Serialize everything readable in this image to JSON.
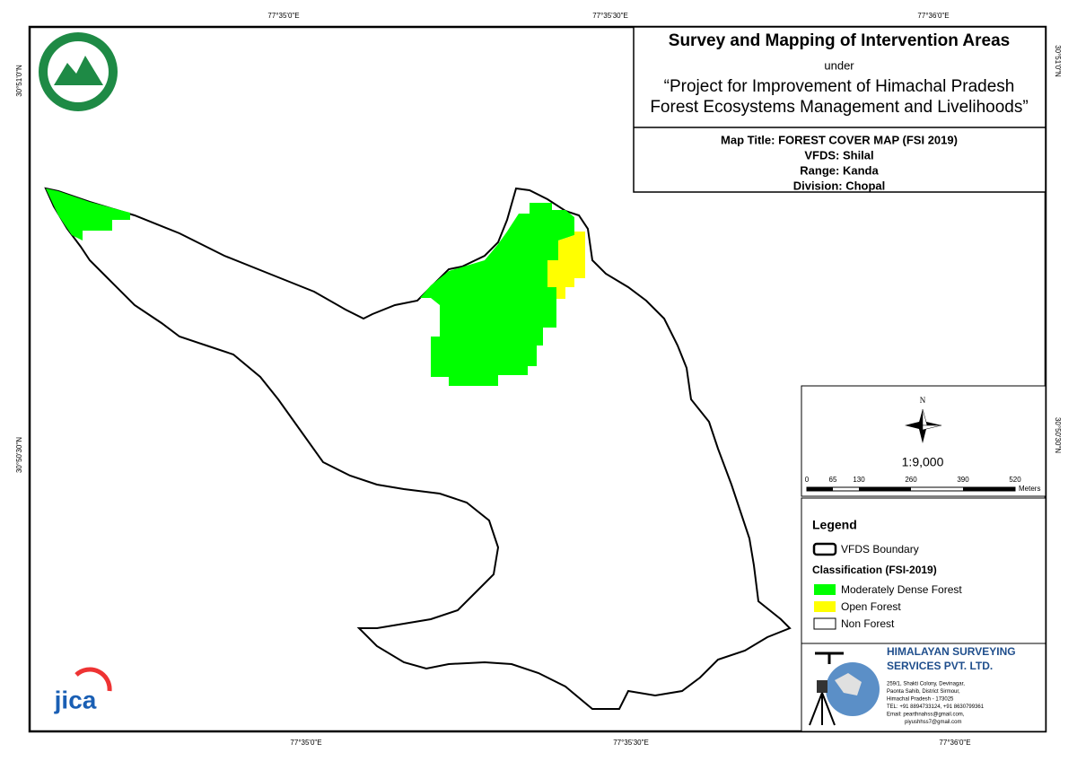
{
  "coords": {
    "top": [
      "77°35'0\"E",
      "77°35'30\"E",
      "77°36'0\"E"
    ],
    "bottom": [
      "77°35'0\"E",
      "77°35'30\"E",
      "77°36'0\"E"
    ],
    "left": [
      "30°51'0\"N",
      "30°50'30\"N"
    ],
    "right": [
      "30°51'0\"N",
      "30°50'30\"N"
    ]
  },
  "header": {
    "title": "Survey and Mapping of Intervention Areas",
    "under": "under",
    "project_line1": "“Project for Improvement of Himachal Pradesh",
    "project_line2": "Forest Ecosystems Management and Livelihoods”"
  },
  "map_info": [
    "Map Title: FOREST COVER MAP (FSI 2019)",
    "VFDS: Shilal",
    "Range: Kanda",
    "Division: Chopal"
  ],
  "north": "N",
  "scale": {
    "ratio": "1:9,000",
    "ticks": [
      0,
      65,
      130,
      260,
      390,
      520
    ],
    "unit": "Meters"
  },
  "legend": {
    "title": "Legend",
    "boundary": "VFDS Boundary",
    "classification": "Classification (FSI-2019)",
    "items": [
      {
        "label": "Moderately Dense Forest",
        "color": "#00ff00"
      },
      {
        "label": "Open Forest",
        "color": "#ffff00"
      },
      {
        "label": "Non Forest",
        "color": "#ffffff"
      }
    ]
  },
  "company": {
    "name1": "HIMALAYAN SURVEYING",
    "name2": "SERVICES PVT. LTD.",
    "address": [
      "259/1, Shakti Colony, Devinagar,",
      "Paonta Sahib, District Sirmour,",
      "Himachal Pradesh - 173025",
      "TEL: +91 8894733124, +91 8630799361",
      "Email: pearthnahss@gmail.com,",
      "piyushhss7@gmail.com"
    ]
  },
  "logos": {
    "jica": "jica"
  }
}
